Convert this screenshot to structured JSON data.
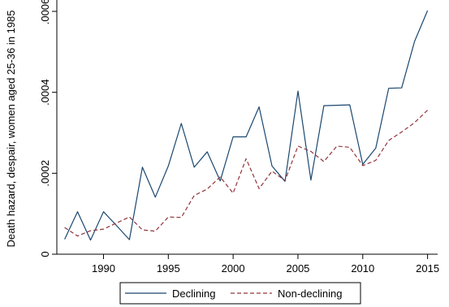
{
  "chart_data": {
    "type": "line",
    "title": "",
    "xlabel": "",
    "ylabel": "Death hazard, despair, women aged 25-36 in 1985",
    "xlim": [
      1986.4,
      2015.4
    ],
    "ylim": [
      0,
      0.0006
    ],
    "xticks": [
      1990,
      1995,
      2000,
      2005,
      2010,
      2015
    ],
    "yticks": [
      0,
      0.0002,
      0.0004,
      0.0006
    ],
    "ytick_labels": [
      "0",
      ".0002",
      ".0004",
      ".0006"
    ],
    "legend_position": "bottom",
    "x": [
      1987,
      1988,
      1989,
      1990,
      1991,
      1992,
      1993,
      1994,
      1995,
      1996,
      1997,
      1998,
      1999,
      2000,
      2001,
      2002,
      2003,
      2004,
      2005,
      2006,
      2007,
      2008,
      2009,
      2010,
      2011,
      2012,
      2013,
      2014,
      2015
    ],
    "series": [
      {
        "name": "Declining",
        "color": "#1a476f",
        "dash": "solid",
        "values": [
          3.7e-05,
          0.000105,
          3.5e-05,
          0.000105,
          7.1e-05,
          3.6e-05,
          0.000215,
          0.000141,
          0.000218,
          0.000323,
          0.000215,
          0.000253,
          0.000181,
          0.00029,
          0.00029,
          0.000364,
          0.000218,
          0.00018,
          0.000403,
          0.000183,
          0.000367,
          0.000368,
          0.000369,
          0.000222,
          0.000262,
          0.00041,
          0.000411,
          0.000526,
          0.000602
        ]
      },
      {
        "name": "Non-declining",
        "color": "#90353b",
        "dash": "dashed",
        "values": [
          6.6e-05,
          4.5e-05,
          5.8e-05,
          6.2e-05,
          7.7e-05,
          9.2e-05,
          6e-05,
          5.7e-05,
          9.2e-05,
          9.1e-05,
          0.000145,
          0.000161,
          0.000191,
          0.000151,
          0.000236,
          0.000162,
          0.000205,
          0.000182,
          0.000267,
          0.000254,
          0.000229,
          0.000267,
          0.000264,
          0.000219,
          0.000232,
          0.000281,
          0.000302,
          0.000325,
          0.000356
        ]
      }
    ]
  }
}
